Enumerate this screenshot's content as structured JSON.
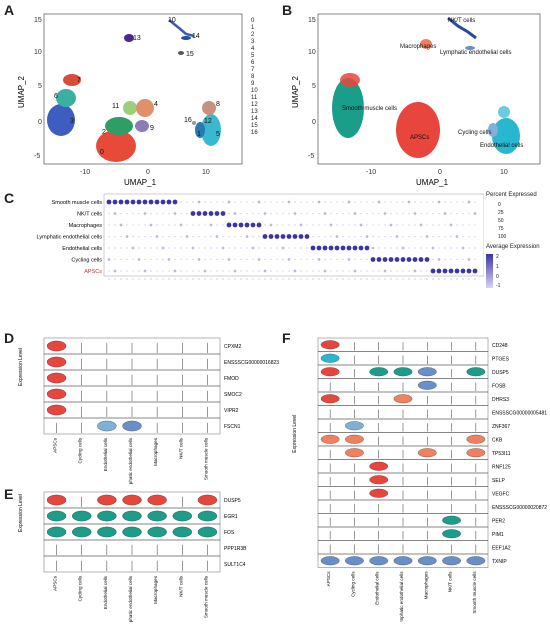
{
  "panels": {
    "A": "A",
    "B": "B",
    "C": "C",
    "D": "D",
    "E": "E",
    "F": "F"
  },
  "umap": {
    "xlabel": "UMAP_1",
    "ylabel": "UMAP_2",
    "x_ticks": [
      "-10",
      "0",
      "10"
    ],
    "y_ticks": [
      "15",
      "10",
      "5",
      "0",
      "-5"
    ],
    "cluster_ids": [
      "0",
      "1",
      "2",
      "3",
      "4",
      "5",
      "6",
      "7",
      "8",
      "9",
      "10",
      "11",
      "12",
      "13",
      "14",
      "15",
      "16"
    ],
    "cell_types": [
      "NK/T cells",
      "Macrophages",
      "Lymphatic endothelial cells",
      "Smooth muscle cells",
      "APSCs",
      "Cycling cells",
      "Endothelial cells"
    ]
  },
  "dotplot": {
    "rows": [
      "Smooth muscle cells",
      "NK/T cells",
      "Macrophages",
      "Lymphatic endothelial cells",
      "Endothelial cells",
      "Cycling cells",
      "APSCs"
    ],
    "percent_title": "Percent Expressed",
    "percent_values": [
      "0",
      "25",
      "50",
      "75",
      "100"
    ],
    "avg_title": "Average Expression",
    "avg_values": [
      "2",
      "1",
      "0",
      "-1"
    ]
  },
  "violin_D": {
    "genes": [
      "CPXM2",
      "ENSSSCG00000016823",
      "FMOD",
      "SMOC2",
      "VIPR2",
      "FSCN1"
    ],
    "ylabel": "Expression Level",
    "groups": [
      "APSCs",
      "Cycling cells",
      "Endothelial cells",
      "Lymphatic endothelial cells",
      "Macrophages",
      "NK/T cells",
      "Smooth muscle cells"
    ]
  },
  "violin_E": {
    "genes": [
      "DUSP5",
      "EGR1",
      "FOS",
      "PPP1R3B",
      "SULT1C4"
    ],
    "ylabel": "Expression Level",
    "groups": [
      "APSCs",
      "Cycling cells",
      "Endothelial cells",
      "Lymphatic endothelial cells",
      "Macrophages",
      "NK/T cells",
      "Smooth muscle cells"
    ]
  },
  "violin_F": {
    "genes": [
      "CD248",
      "PTGES",
      "DUSP5",
      "FOSB",
      "DHRS3",
      "ENSSSCG00000005481",
      "ZNF367",
      "CKB",
      "TP53I11",
      "RNF125",
      "SELP",
      "VEGFC",
      "ENSSSCG00000020872",
      "PER2",
      "PIM1",
      "EEF1A2",
      "TXNIP"
    ],
    "ylabel": "Expression Level",
    "groups": [
      "APSCs",
      "Cycling cells",
      "Endothelial cells",
      "Lymphatic endothelial cells",
      "Macrophages",
      "NK/T cells",
      "Smooth muscle cells"
    ]
  },
  "colors": {
    "apscs": "#e8453c",
    "smooth": "#1a9e8a",
    "endo": "#29b6d1",
    "macro": "#f08060",
    "nkt": "#2a4a9a",
    "lymph": "#6a8ec8",
    "cycling": "#7fb0d6",
    "dot": "#3a34a8"
  }
}
